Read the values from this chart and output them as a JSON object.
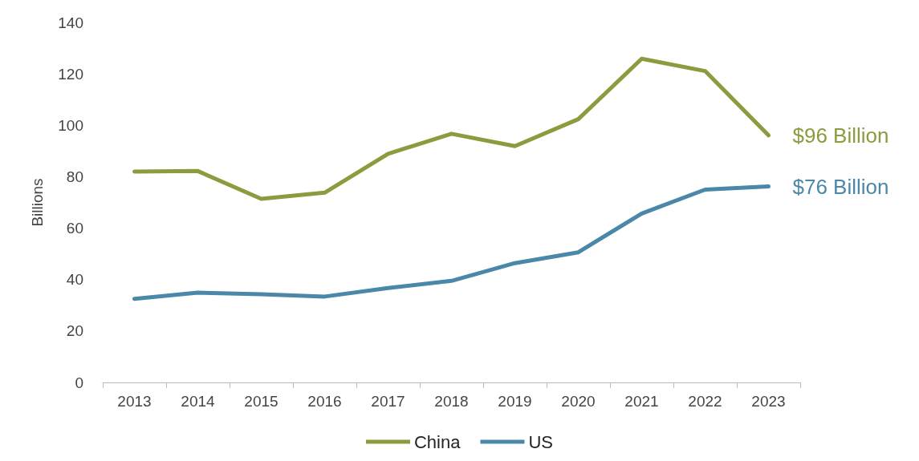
{
  "chart_data": {
    "type": "line",
    "ylabel": "Billions",
    "categories": [
      "2013",
      "2014",
      "2015",
      "2016",
      "2017",
      "2018",
      "2019",
      "2020",
      "2021",
      "2022",
      "2023"
    ],
    "series": [
      {
        "name": "China",
        "color": "#8b9b3e",
        "values": [
          82,
          82.2,
          71.4,
          73.8,
          88.9,
          96.7,
          91.9,
          102.4,
          125.9,
          121.1,
          96.1
        ]
      },
      {
        "name": "US",
        "color": "#4a87a8",
        "values": [
          32.5,
          34.9,
          34.3,
          33.4,
          36.7,
          39.5,
          46.4,
          50.6,
          65.7,
          75,
          76.2
        ]
      }
    ],
    "annotations": [
      {
        "text": "$96 Billion",
        "x": "2023",
        "y": 96
      },
      {
        "text": "$76 Billion",
        "x": "2023",
        "y": 76
      }
    ],
    "ylim": [
      0,
      140
    ],
    "yticks": [
      0,
      20,
      40,
      60,
      80,
      100,
      120,
      140
    ],
    "grid": false,
    "legend": "bottom",
    "marker": "none",
    "line_style": "solid"
  }
}
